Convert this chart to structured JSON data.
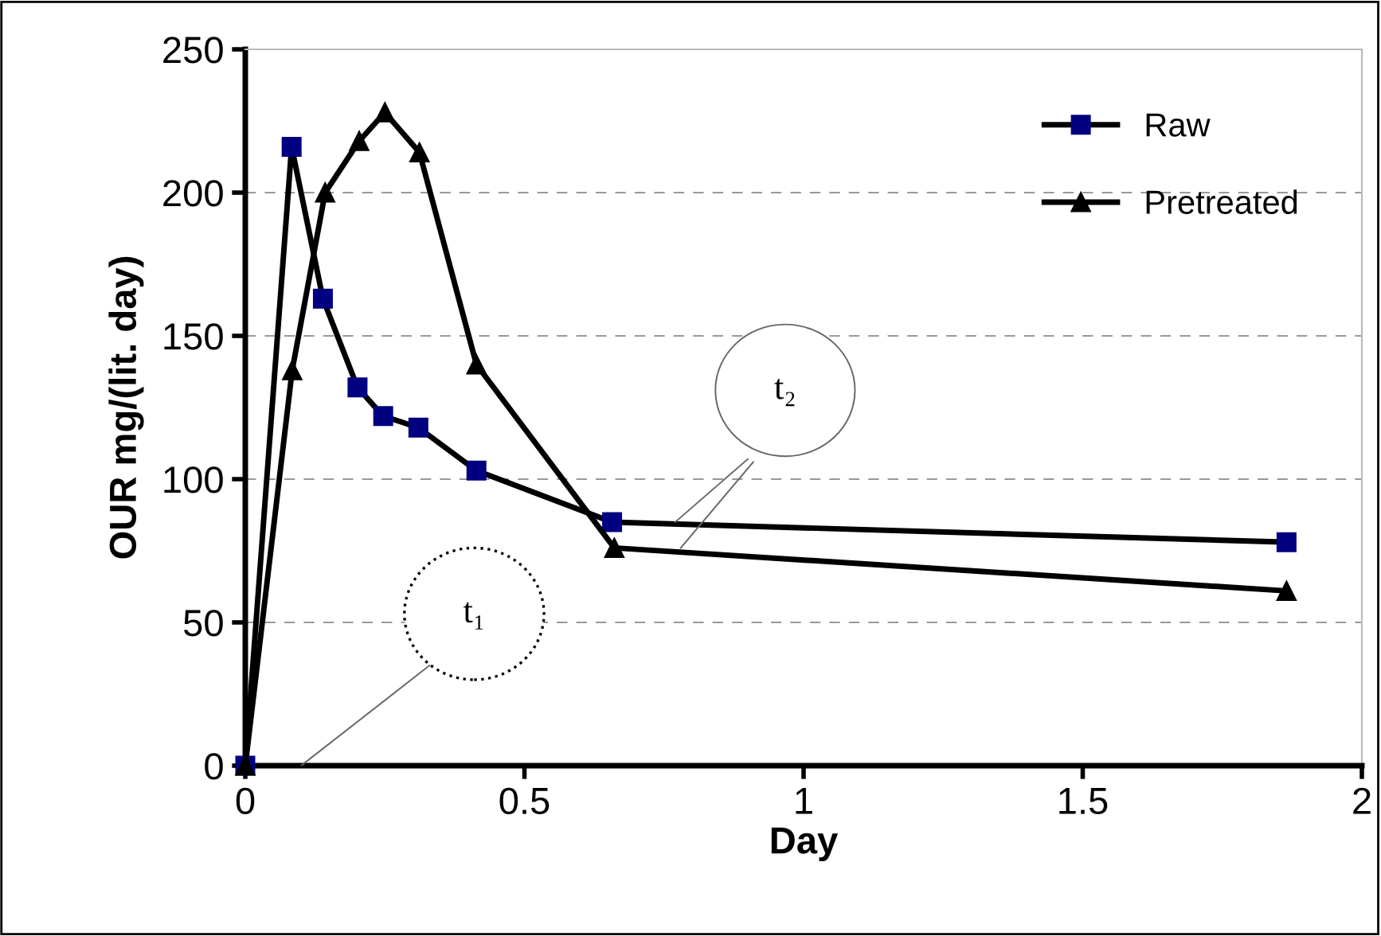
{
  "chart_data": {
    "type": "line",
    "xlabel": "Day",
    "ylabel": "OUR mg/(lit. day)",
    "xlim": [
      0,
      2
    ],
    "xticks": [
      0,
      0.5,
      1,
      1.5,
      2
    ],
    "ylim": [
      0,
      250
    ],
    "yticks": [
      0,
      50,
      100,
      150,
      200,
      250
    ],
    "grid": "y",
    "legend": "top right",
    "line_style": "solid",
    "series": [
      {
        "name": "Raw",
        "color": "#000080",
        "marker": "square",
        "x": [
          0,
          0.083,
          0.139,
          0.201,
          0.247,
          0.31,
          0.414,
          0.657,
          1.865
        ],
        "values": [
          0,
          216,
          163,
          132,
          122,
          118,
          103,
          85,
          78
        ]
      },
      {
        "name": "Pretreated",
        "color": "#000000",
        "marker": "triangle",
        "x": [
          0,
          0.084,
          0.143,
          0.204,
          0.25,
          0.312,
          0.414,
          0.661,
          1.865
        ],
        "values": [
          0,
          138,
          200,
          218,
          228,
          214,
          140,
          76,
          61
        ]
      }
    ],
    "annotations": [
      "t₁",
      "t₂"
    ]
  }
}
